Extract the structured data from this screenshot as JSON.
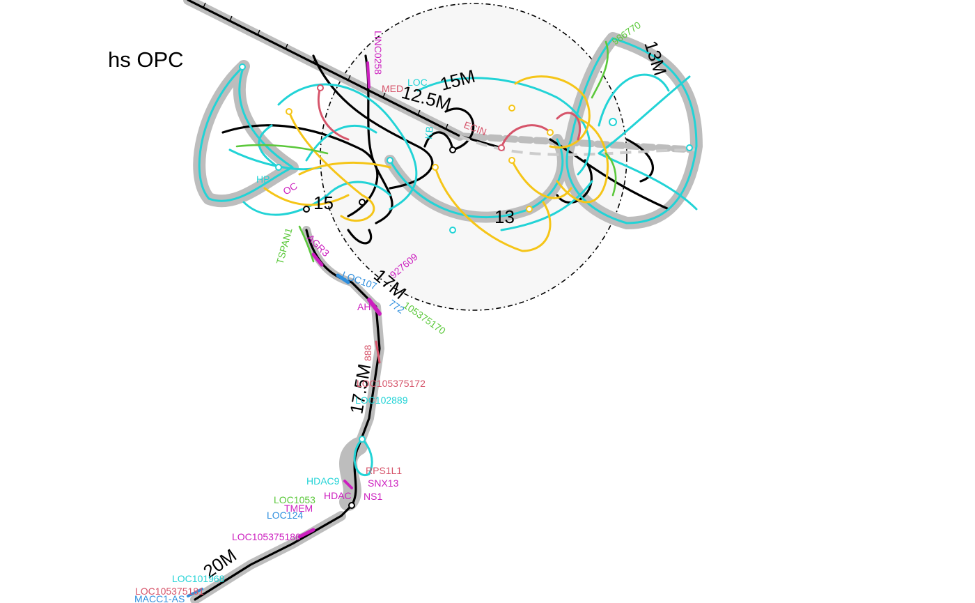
{
  "title": "hs OPC",
  "colors": {
    "backbone": "#000000",
    "halo": "#bdbdbd",
    "cyan": "#22d3d6",
    "yellow": "#f5c518",
    "red": "#d6546a",
    "magenta": "#cc1fbf",
    "green": "#5bc83b",
    "blue": "#2f8fde",
    "tad_fill": "#f7f7f7"
  },
  "coordinate_labels": [
    {
      "text": "13M"
    },
    {
      "text": "12.5M"
    },
    {
      "text": "15M"
    },
    {
      "text": "15"
    },
    {
      "text": "13"
    },
    {
      "text": "17M"
    },
    {
      "text": "17.5M"
    },
    {
      "text": "20M"
    }
  ],
  "gene_labels": [
    {
      "text": "LINC0258",
      "color": "magenta"
    },
    {
      "text": "MED",
      "color": "red"
    },
    {
      "text": "LOC",
      "color": "cyan"
    },
    {
      "text": "986770",
      "color": "green"
    },
    {
      "text": "ECIN",
      "color": "red"
    },
    {
      "text": "KB",
      "color": "cyan"
    },
    {
      "text": "HP",
      "color": "cyan"
    },
    {
      "text": "OC",
      "color": "magenta"
    },
    {
      "text": "TSPAN1",
      "color": "green"
    },
    {
      "text": "AGR3",
      "color": "magenta"
    },
    {
      "text": "LOC107",
      "color": "blue"
    },
    {
      "text": "927609",
      "color": "magenta"
    },
    {
      "text": "AH",
      "color": "magenta"
    },
    {
      "text": "772",
      "color": "blue"
    },
    {
      "text": "105375170",
      "color": "green"
    },
    {
      "text": "888",
      "color": "red"
    },
    {
      "text": "LOC105375172",
      "color": "red"
    },
    {
      "text": "LOC102889",
      "color": "cyan"
    },
    {
      "text": "RPS1L1",
      "color": "red"
    },
    {
      "text": "SNX13",
      "color": "magenta"
    },
    {
      "text": "HDAC9",
      "color": "cyan"
    },
    {
      "text": "HDAC",
      "color": "magenta"
    },
    {
      "text": "NS1",
      "color": "magenta"
    },
    {
      "text": "LOC1053",
      "color": "green"
    },
    {
      "text": "TMEM",
      "color": "magenta"
    },
    {
      "text": "LOC124",
      "color": "blue"
    },
    {
      "text": "LOC105375180",
      "color": "magenta"
    },
    {
      "text": "LOC101968",
      "color": "cyan"
    },
    {
      "text": "LOC105375181",
      "color": "red"
    },
    {
      "text": "MACC1-AS",
      "color": "blue"
    }
  ]
}
